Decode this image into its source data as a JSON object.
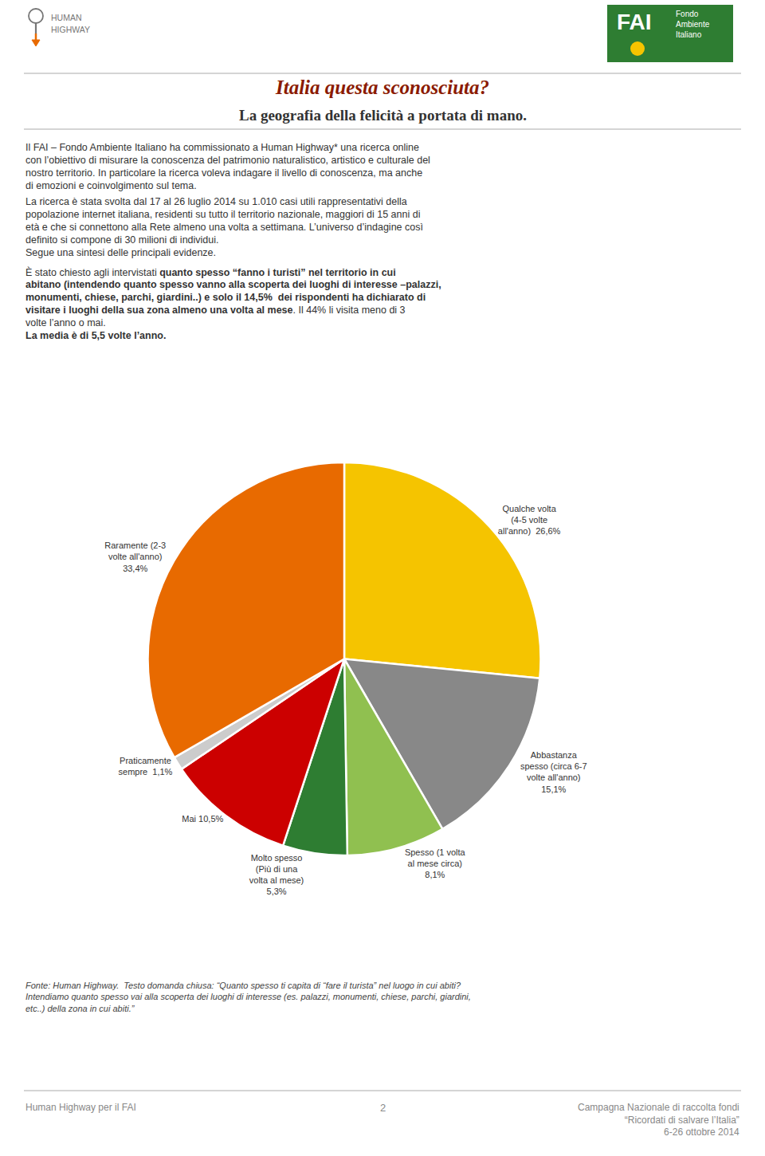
{
  "chart_data": {
    "type": "pie",
    "title": "Italia questa sconosciuta?",
    "subtitle": "La geografia della felicità a portata di mano.",
    "categories": [
      "Qualche volta\n(4-5 volte\nall'anno)  26,6%",
      "Abbastanza\nspesso (circa 6-7\nvolte all'anno)\n15,1%",
      "Spesso (1 volta\nal mese circa)\n8,1%",
      "Molto spesso\n(Più di una\nvolta al mese)\n5,3%",
      "Mai 10,5%",
      "Praticamente\nsempre  1,1%",
      "Raramente (2-3\nvolte all'anno)\n33,4%"
    ],
    "values": [
      26.6,
      15.1,
      8.1,
      5.3,
      10.5,
      1.1,
      33.4
    ],
    "colors": [
      "#F5C400",
      "#888888",
      "#90C050",
      "#2E7D32",
      "#CC0000",
      "#cccccc",
      "#E86A00"
    ],
    "annotations": [
      "FAI",
      "Fondo",
      "Ambiente",
      "Italiano",
      "HUMAN",
      "HIGHWAY",
      "Il FAI – Fondo Ambiente Italiano ha commissionato a Human Highway* una ricerca online",
      "con l’obiettivo di misurare la conoscenza del patrimonio naturalistico, artistico e culturale del",
      "nostro territorio. In particolare la ricerca voleva indagare il livello di conoscenza, ma anche",
      "di emozioni e coinvolgimento sul tema.",
      "La ricerca è stata svolta dal 17 al 26 luglio 2014 su 1.010 casi utili rappresentativi della",
      "popolazione internet italiana, residenti su tutto il territorio nazionale, maggiori di 15 anni di",
      "età e che si connettono alla Rete almeno una volta a settimana. L’universo d’indagine così",
      "definito si compone di 30 milioni di individui.",
      "Segue una sintesi delle principali evidenze.",
      "È stato chiesto agli intervistati ",
      "quanto spesso “fanno i turisti” nel territorio in cui",
      "abitano (intendendo quanto spesso vanno alla scoperta dei luoghi di interesse –palazzi,",
      "monumenti, chiese, parchi, giardini..) e solo il 14,5%  dei rispondenti ha dichiarato di",
      "visitare i luoghi della sua zona almeno una volta al mese",
      ". Il 44% li visita meno di 3",
      "volte l’anno o mai.",
      "La media è di 5,5 volte l’anno.",
      "Fonte: Human Highway.  Testo domanda chiusa: “Quanto spesso ti capita di “fare il turista” nel luogo in cui abiti?\nIntendiamo quanto spesso vai alla scoperta dei luoghi di interesse (es. palazzi, monumenti, chiese, parchi, giardini,\netc..) della zona in cui abiti.”",
      "Human Highway per il FAI",
      "2",
      "Campagna Nazionale di raccolta fondi\n“Ricordati di salvare l’Italia”\n6-26 ottobre 2014"
    ]
  }
}
